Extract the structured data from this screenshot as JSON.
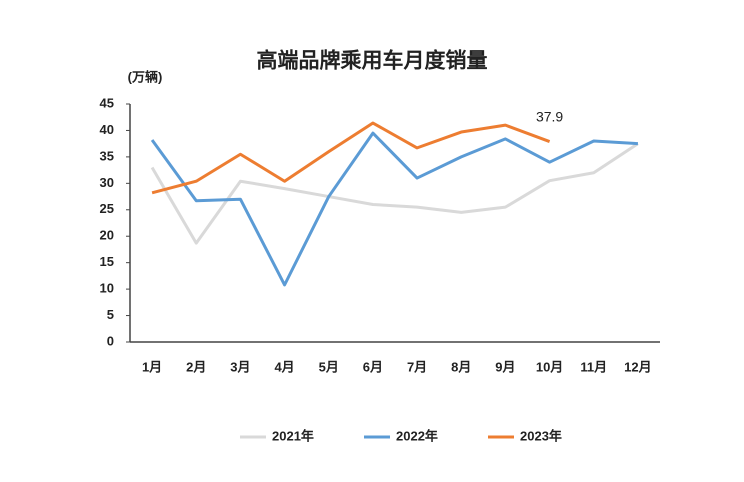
{
  "chart_data": {
    "type": "line",
    "title": "高端品牌乘用车月度销量",
    "y_label": "(万辆)",
    "categories": [
      "1月",
      "2月",
      "3月",
      "4月",
      "5月",
      "6月",
      "7月",
      "8月",
      "9月",
      "10月",
      "11月",
      "12月"
    ],
    "series": [
      {
        "name": "2021年",
        "color": "#d9d9d9",
        "values": [
          33,
          18.7,
          30.4,
          29,
          27.5,
          26,
          25.5,
          24.5,
          25.5,
          30.5,
          32,
          37.5
        ]
      },
      {
        "name": "2022年",
        "color": "#5b9bd5",
        "values": [
          38.2,
          26.7,
          27,
          10.8,
          27.5,
          39.5,
          31,
          35,
          38.4,
          34,
          38,
          37.5
        ]
      },
      {
        "name": "2023年",
        "color": "#ed7d31",
        "values": [
          28.2,
          30.4,
          35.5,
          30.4,
          36,
          41.4,
          36.7,
          39.7,
          41,
          37.9,
          null,
          null
        ],
        "show_last_label": true
      }
    ],
    "ylim": [
      0,
      45
    ],
    "yticks": [
      0,
      5,
      10,
      15,
      20,
      25,
      30,
      35,
      40,
      45
    ],
    "legend": "bottom"
  }
}
